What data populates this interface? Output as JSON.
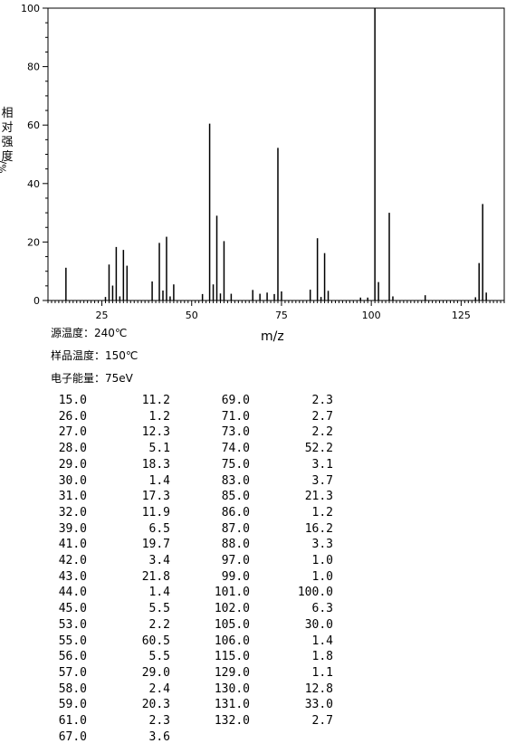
{
  "chart_data": {
    "type": "bar",
    "title": "",
    "xlabel": "m/z",
    "ylabel": "相对强度",
    "ylabel_unit": "%/",
    "xlim": [
      10,
      137
    ],
    "ylim": [
      0,
      100
    ],
    "x_ticks": [
      25,
      50,
      75,
      100,
      125
    ],
    "y_ticks": [
      0,
      20,
      40,
      60,
      80,
      100
    ],
    "peaks": [
      {
        "mz": 15.0,
        "intensity": 11.2
      },
      {
        "mz": 26.0,
        "intensity": 1.2
      },
      {
        "mz": 27.0,
        "intensity": 12.3
      },
      {
        "mz": 28.0,
        "intensity": 5.1
      },
      {
        "mz": 29.0,
        "intensity": 18.3
      },
      {
        "mz": 30.0,
        "intensity": 1.4
      },
      {
        "mz": 31.0,
        "intensity": 17.3
      },
      {
        "mz": 32.0,
        "intensity": 11.9
      },
      {
        "mz": 39.0,
        "intensity": 6.5
      },
      {
        "mz": 41.0,
        "intensity": 19.7
      },
      {
        "mz": 42.0,
        "intensity": 3.4
      },
      {
        "mz": 43.0,
        "intensity": 21.8
      },
      {
        "mz": 44.0,
        "intensity": 1.4
      },
      {
        "mz": 45.0,
        "intensity": 5.5
      },
      {
        "mz": 53.0,
        "intensity": 2.2
      },
      {
        "mz": 55.0,
        "intensity": 60.5
      },
      {
        "mz": 56.0,
        "intensity": 5.5
      },
      {
        "mz": 57.0,
        "intensity": 29.0
      },
      {
        "mz": 58.0,
        "intensity": 2.4
      },
      {
        "mz": 59.0,
        "intensity": 20.3
      },
      {
        "mz": 61.0,
        "intensity": 2.3
      },
      {
        "mz": 67.0,
        "intensity": 3.6
      },
      {
        "mz": 69.0,
        "intensity": 2.3
      },
      {
        "mz": 71.0,
        "intensity": 2.7
      },
      {
        "mz": 73.0,
        "intensity": 2.2
      },
      {
        "mz": 74.0,
        "intensity": 52.2
      },
      {
        "mz": 75.0,
        "intensity": 3.1
      },
      {
        "mz": 83.0,
        "intensity": 3.7
      },
      {
        "mz": 85.0,
        "intensity": 21.3
      },
      {
        "mz": 86.0,
        "intensity": 1.2
      },
      {
        "mz": 87.0,
        "intensity": 16.2
      },
      {
        "mz": 88.0,
        "intensity": 3.3
      },
      {
        "mz": 97.0,
        "intensity": 1.0
      },
      {
        "mz": 99.0,
        "intensity": 1.0
      },
      {
        "mz": 101.0,
        "intensity": 100.0
      },
      {
        "mz": 102.0,
        "intensity": 6.3
      },
      {
        "mz": 105.0,
        "intensity": 30.0
      },
      {
        "mz": 106.0,
        "intensity": 1.4
      },
      {
        "mz": 115.0,
        "intensity": 1.8
      },
      {
        "mz": 129.0,
        "intensity": 1.1
      },
      {
        "mz": 130.0,
        "intensity": 12.8
      },
      {
        "mz": 131.0,
        "intensity": 33.0
      },
      {
        "mz": 132.0,
        "intensity": 2.7
      }
    ]
  },
  "conditions": {
    "source_temp": "源温度：240℃",
    "sample_temp": "样品温度：150℃",
    "electron_energy": "电子能量：75eV"
  },
  "peak_table": {
    "left": [
      [
        "15.0",
        "11.2"
      ],
      [
        "26.0",
        "1.2"
      ],
      [
        "27.0",
        "12.3"
      ],
      [
        "28.0",
        "5.1"
      ],
      [
        "29.0",
        "18.3"
      ],
      [
        "30.0",
        "1.4"
      ],
      [
        "31.0",
        "17.3"
      ],
      [
        "32.0",
        "11.9"
      ],
      [
        "39.0",
        "6.5"
      ],
      [
        "41.0",
        "19.7"
      ],
      [
        "42.0",
        "3.4"
      ],
      [
        "43.0",
        "21.8"
      ],
      [
        "44.0",
        "1.4"
      ],
      [
        "45.0",
        "5.5"
      ],
      [
        "53.0",
        "2.2"
      ],
      [
        "55.0",
        "60.5"
      ],
      [
        "56.0",
        "5.5"
      ],
      [
        "57.0",
        "29.0"
      ],
      [
        "58.0",
        "2.4"
      ],
      [
        "59.0",
        "20.3"
      ],
      [
        "61.0",
        "2.3"
      ],
      [
        "67.0",
        "3.6"
      ]
    ],
    "right": [
      [
        "69.0",
        "2.3"
      ],
      [
        "71.0",
        "2.7"
      ],
      [
        "73.0",
        "2.2"
      ],
      [
        "74.0",
        "52.2"
      ],
      [
        "75.0",
        "3.1"
      ],
      [
        "83.0",
        "3.7"
      ],
      [
        "85.0",
        "21.3"
      ],
      [
        "86.0",
        "1.2"
      ],
      [
        "87.0",
        "16.2"
      ],
      [
        "88.0",
        "3.3"
      ],
      [
        "97.0",
        "1.0"
      ],
      [
        "99.0",
        "1.0"
      ],
      [
        "101.0",
        "100.0"
      ],
      [
        "102.0",
        "6.3"
      ],
      [
        "105.0",
        "30.0"
      ],
      [
        "106.0",
        "1.4"
      ],
      [
        "115.0",
        "1.8"
      ],
      [
        "129.0",
        "1.1"
      ],
      [
        "130.0",
        "12.8"
      ],
      [
        "131.0",
        "33.0"
      ],
      [
        "132.0",
        "2.7"
      ]
    ]
  }
}
